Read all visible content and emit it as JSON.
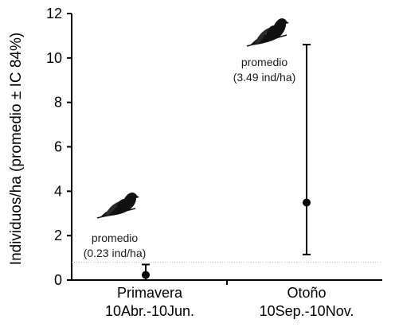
{
  "chart_data": {
    "type": "scatter",
    "title": "",
    "xlabel": "",
    "ylabel": "Individuos/ha (promedio ± IC 84%)",
    "ylim": [
      0,
      12
    ],
    "yticks": [
      0,
      2,
      4,
      6,
      8,
      10,
      12
    ],
    "grid": false,
    "reference_line": {
      "y": 0.8,
      "style": "dotted"
    },
    "categories": [
      {
        "line1": "Primavera",
        "line2": "10Abr.-10Jun."
      },
      {
        "line1": "Otoño",
        "line2": "10Sep.-10Nov."
      }
    ],
    "series": [
      {
        "mean": [
          0.23,
          3.49
        ],
        "ci_low": [
          0.0,
          1.15
        ],
        "ci_high": [
          0.7,
          10.6
        ]
      }
    ],
    "annotations": [
      {
        "line1": "promedio",
        "line2": "(0.23 ind/ha)",
        "icon": "dove-silhouette-icon"
      },
      {
        "line1": "promedio",
        "line2": "(3.49 ind/ha)",
        "icon": "dove-silhouette-icon"
      }
    ],
    "colors": {
      "axis": "#000000",
      "marker": "#000000",
      "reference_line": "#bfbfbf",
      "bird": "#111111"
    }
  }
}
